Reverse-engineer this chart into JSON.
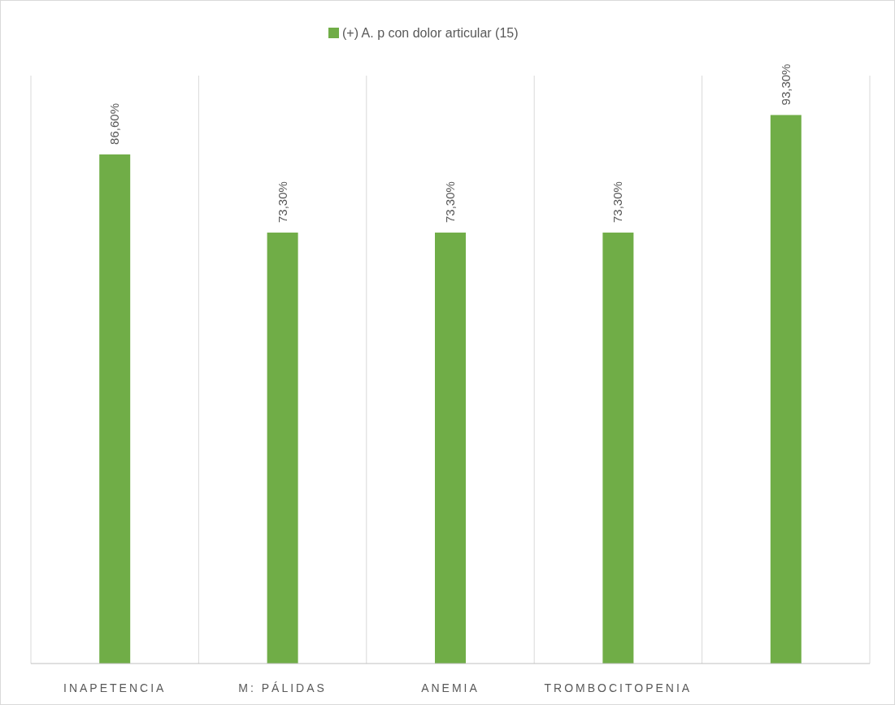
{
  "chart_data": {
    "type": "bar",
    "categories": [
      "INAPETENCIA",
      "M: PÁLIDAS",
      "ANEMIA",
      "TROMBOCITOPENIA",
      null
    ],
    "series": [
      {
        "name": "(+) A. p con dolor articular (15)",
        "color": "#70ad47",
        "values": [
          86.6,
          73.3,
          73.3,
          73.3,
          93.3
        ],
        "value_labels": [
          "86,60%",
          "73,30%",
          "73,30%",
          "73,30%",
          "93,30%"
        ]
      }
    ],
    "ylim": [
      0,
      100
    ],
    "grid": "x",
    "legend": "top"
  }
}
